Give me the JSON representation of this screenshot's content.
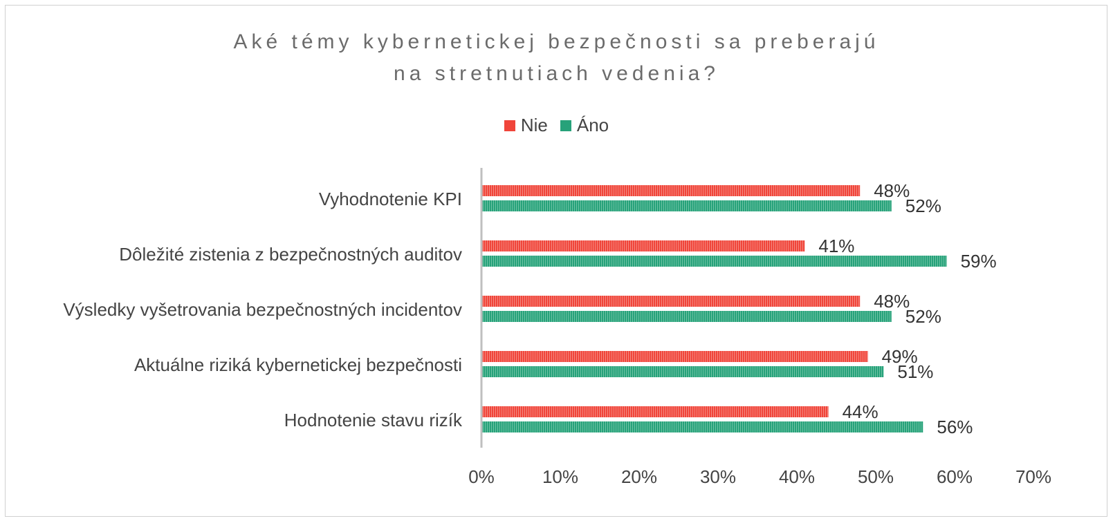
{
  "chart_data": {
    "type": "bar",
    "orientation": "horizontal",
    "title": "Aké témy kybernetickej bezpečnosti sa preberajú na stretnutiach vedenia?",
    "title_lines": [
      "Aké témy kybernetickej bezpečnosti sa preberajú",
      "na stretnutiach vedenia?"
    ],
    "categories": [
      "Vyhodnotenie KPI",
      "Dôležité zistenia z bezpečnostných auditov",
      "Výsledky vyšetrovania bezpečnostných incidentov",
      "Aktuálne riziká kybernetickej bezpečnosti",
      "Hodnotenie stavu rizík"
    ],
    "series": [
      {
        "name": "Nie",
        "color": "#f0453a",
        "values": [
          48,
          41,
          48,
          49,
          44
        ]
      },
      {
        "name": "Áno",
        "color": "#27a27a",
        "values": [
          52,
          59,
          52,
          51,
          56
        ]
      }
    ],
    "value_labels": {
      "Nie": [
        "48%",
        "41%",
        "48%",
        "49%",
        "44%"
      ],
      "Áno": [
        "52%",
        "59%",
        "52%",
        "51%",
        "56%"
      ]
    },
    "xlim": [
      0,
      70
    ],
    "xticks": [
      0,
      10,
      20,
      30,
      40,
      50,
      60,
      70
    ],
    "xtick_labels": [
      "0%",
      "10%",
      "20%",
      "30%",
      "40%",
      "50%",
      "60%",
      "70%"
    ],
    "xlabel": "",
    "ylabel": "",
    "grid": false,
    "legend_position": "top-center"
  }
}
